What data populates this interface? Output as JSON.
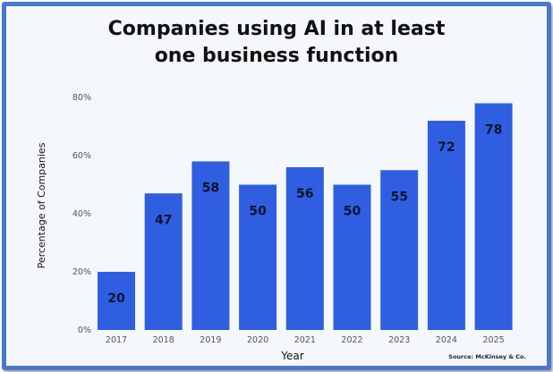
{
  "chart_data": {
    "type": "bar",
    "title_line1": "Companies using AI in at least",
    "title_line2": "one business function",
    "xlabel": "Year",
    "ylabel": "Percentage of Companies",
    "categories": [
      "2017",
      "2018",
      "2019",
      "2020",
      "2021",
      "2022",
      "2023",
      "2024",
      "2025"
    ],
    "values": [
      20,
      47,
      58,
      50,
      56,
      50,
      55,
      72,
      78
    ],
    "ylim": [
      0,
      80
    ],
    "yticks": [
      0,
      20,
      40,
      60,
      80
    ],
    "ytick_labels": [
      "0%",
      "20%",
      "40%",
      "60%",
      "80%"
    ],
    "grid": false,
    "source": "Source: McKinsey & Co.",
    "bar_color": "#2f5ee0",
    "frame_color": "#4a78cc"
  }
}
